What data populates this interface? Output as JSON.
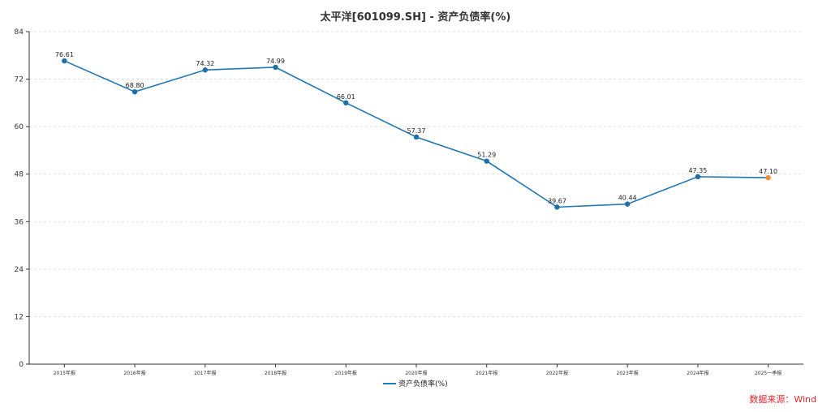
{
  "chart_data": {
    "type": "line",
    "title": "太平洋[601099.SH] - 资产负债率(%)",
    "categories": [
      "2015年报",
      "2016年报",
      "2017年报",
      "2018年报",
      "2019年报",
      "2020年报",
      "2021年报",
      "2022年报",
      "2023年报",
      "2024年报",
      "2025一季报"
    ],
    "series": [
      {
        "name": "资产负债率(%)",
        "values": [
          76.61,
          68.8,
          74.32,
          74.99,
          66.01,
          57.37,
          51.29,
          39.67,
          40.44,
          47.35,
          47.1
        ]
      }
    ],
    "data_labels": [
      "76.61",
      "68.80",
      "74.32",
      "74.99",
      "66.01",
      "57.37",
      "51.29",
      "39.67",
      "40.44",
      "47.35",
      "47.10"
    ],
    "ylim": [
      0,
      84
    ],
    "yticks": [
      0,
      12,
      24,
      36,
      48,
      60,
      72,
      84
    ],
    "grid": true,
    "legend_position": "bottom-center",
    "colors": {
      "line": "#1f77b4",
      "marker": "#1f6fa8",
      "last_marker": "#f28e2b"
    },
    "xlabel": "",
    "ylabel": ""
  },
  "source_note": "数据来源：Wind"
}
